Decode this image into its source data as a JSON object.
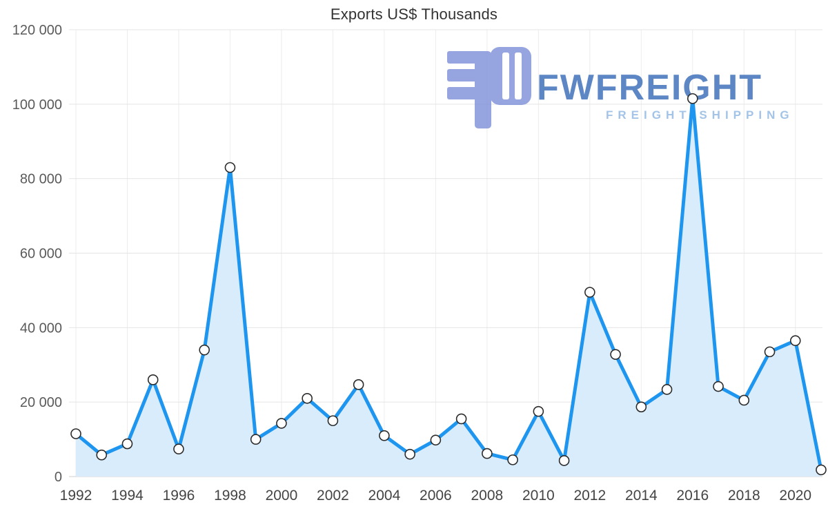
{
  "chart_data": {
    "type": "area",
    "title": "Exports US$ Thousands",
    "xlabel": "",
    "ylabel": "",
    "x": [
      1992,
      1993,
      1994,
      1995,
      1996,
      1997,
      1998,
      1999,
      2000,
      2001,
      2002,
      2003,
      2004,
      2005,
      2006,
      2007,
      2008,
      2009,
      2010,
      2011,
      2012,
      2013,
      2014,
      2015,
      2016,
      2017,
      2018,
      2019,
      2020,
      2021
    ],
    "values": [
      11500,
      5800,
      8800,
      26000,
      7400,
      34000,
      83000,
      10000,
      14300,
      21000,
      15000,
      24700,
      11000,
      6000,
      9800,
      15500,
      6200,
      4500,
      17500,
      4300,
      49500,
      32800,
      18700,
      23400,
      101500,
      24200,
      20500,
      33500,
      36500,
      1800
    ],
    "ylim": [
      0,
      120000
    ],
    "yticks": [
      0,
      20000,
      40000,
      60000,
      80000,
      100000,
      120000
    ],
    "ytick_labels": [
      "0",
      "20 000",
      "40 000",
      "60 000",
      "80 000",
      "100 000",
      "120 000"
    ],
    "xticks": [
      1992,
      1994,
      1996,
      1998,
      2000,
      2002,
      2004,
      2006,
      2008,
      2010,
      2012,
      2014,
      2016,
      2018,
      2020
    ],
    "xtick_labels": [
      "1992",
      "1994",
      "1996",
      "1998",
      "2000",
      "2002",
      "2004",
      "2006",
      "2008",
      "2010",
      "2012",
      "2014",
      "2016",
      "2018",
      "2020"
    ],
    "grid": true,
    "legend": "none",
    "colors": {
      "line": "#1e96f0",
      "fill": "#d9ecfb",
      "marker_fill": "#ffffff",
      "marker_stroke": "#2b2b2b",
      "grid": "#e4e4e4",
      "grid_vertical": "#ececec",
      "axis_line": "#cfcfcf",
      "x_text": "#444444",
      "y_text": "#5a5a5a",
      "title": "#333333"
    }
  },
  "watermark": {
    "brand": "FWFREIGHT",
    "tagline": "FREIGHT SHIPPING",
    "colors": {
      "mark": "#8092da",
      "brand_text": "#3a6db8",
      "tagline_text": "#8fb6e2"
    }
  }
}
